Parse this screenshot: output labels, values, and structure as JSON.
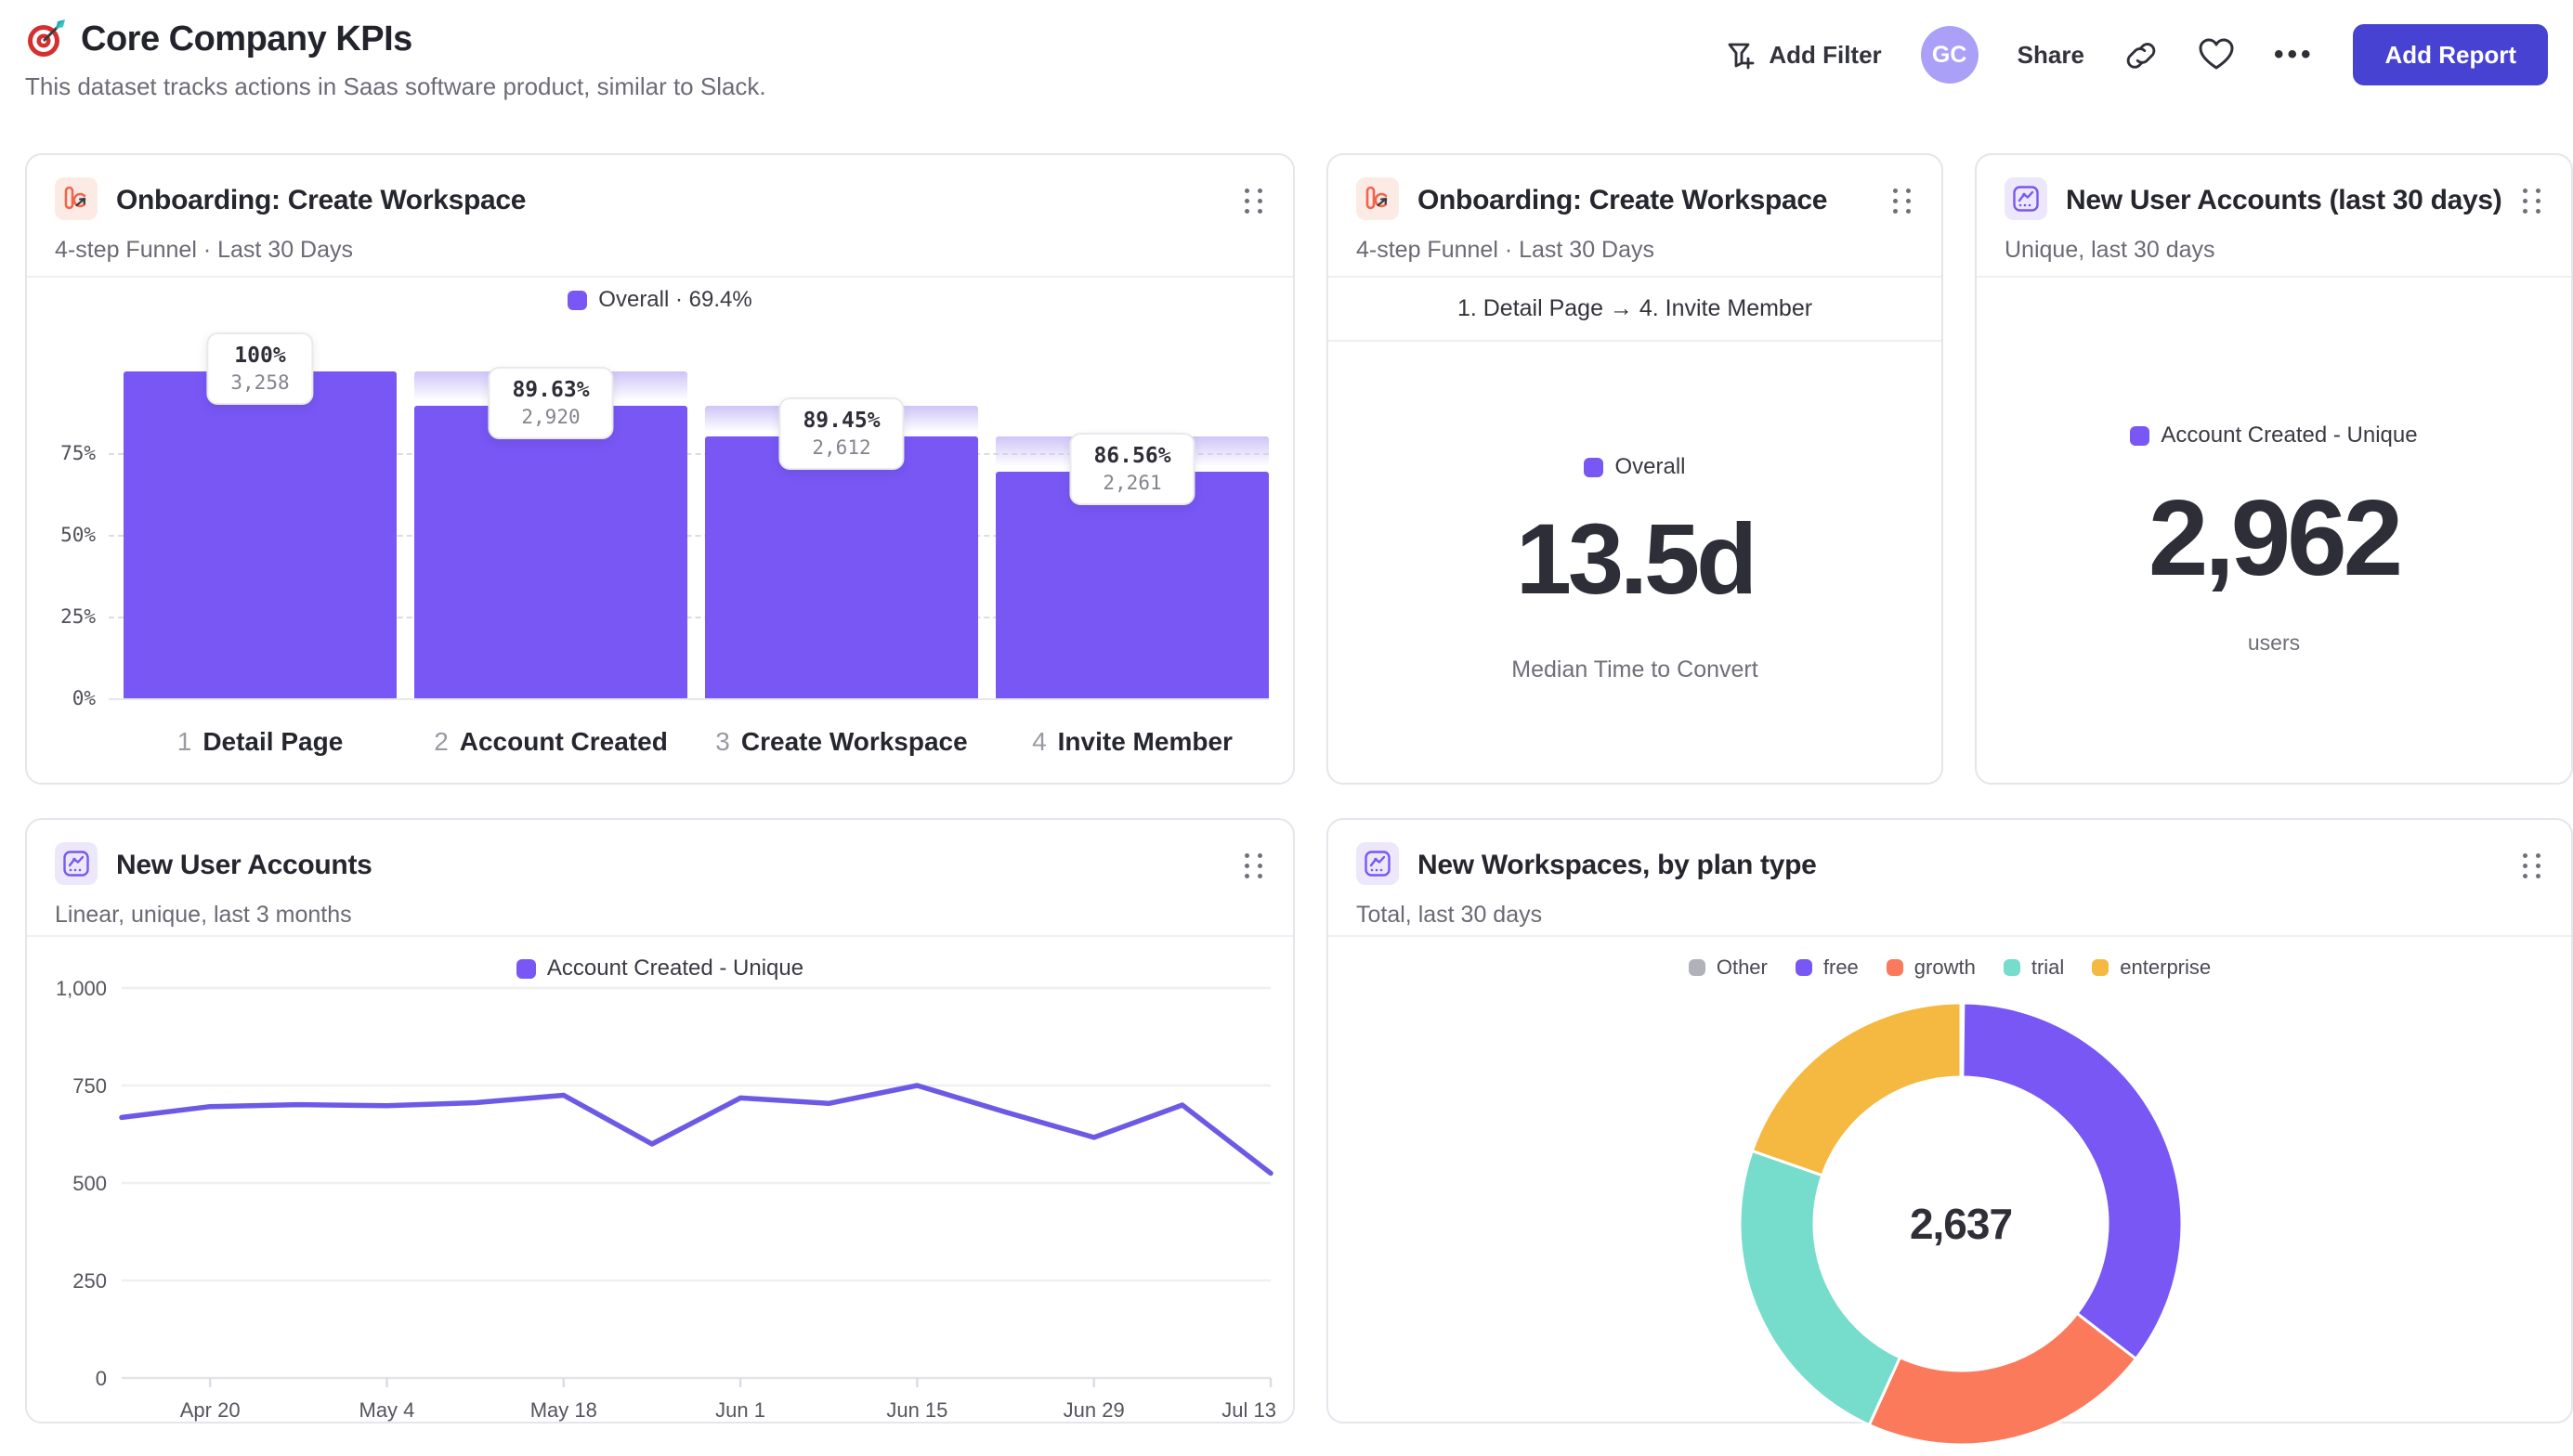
{
  "header": {
    "title": "Core Company KPIs",
    "subtitle": "This dataset tracks actions in Saas software product, similar to Slack.",
    "actions": {
      "add_filter": "Add Filter",
      "avatar_initials": "GC",
      "share": "Share",
      "more": "•••",
      "add_report": "Add Report"
    }
  },
  "colors": {
    "purple": "#7857f5",
    "coral": "#fb7a5c",
    "teal": "#76dccb",
    "amber": "#f5b942",
    "gray": "#b1b1b9"
  },
  "cards": {
    "funnel_bars": {
      "title": "Onboarding: Create Workspace",
      "subtitle": "4-step Funnel · Last 30 Days",
      "legend_label": "Overall · 69.4%"
    },
    "funnel_metric": {
      "title": "Onboarding: Create Workspace",
      "subtitle": "4-step Funnel · Last 30 Days",
      "range_label": "1. Detail Page → 4. Invite Member",
      "legend_label": "Overall",
      "value": "13.5d",
      "caption": "Median Time to Convert"
    },
    "new_users_metric": {
      "title": "New User Accounts (last 30 days)",
      "subtitle": "Unique, last 30 days",
      "legend_label": "Account Created - Unique",
      "value": "2,962",
      "caption": "users"
    },
    "new_users_line": {
      "title": "New User Accounts",
      "subtitle": "Linear, unique, last 3 months",
      "legend_label": "Account Created - Unique"
    },
    "workspaces_donut": {
      "title": "New Workspaces, by plan type",
      "subtitle": "Total, last 30 days",
      "center_value": "2,637"
    }
  },
  "chart_data": [
    {
      "type": "bar",
      "subtype": "funnel",
      "title": "Onboarding: Create Workspace",
      "overall_conversion_pct": 69.4,
      "yticks": [
        {
          "label": "75%",
          "v": 75
        },
        {
          "label": "50%",
          "v": 50
        },
        {
          "label": "25%",
          "v": 25
        },
        {
          "label": "0%",
          "v": 0
        }
      ],
      "steps": [
        {
          "num": "1",
          "label": "Detail Page",
          "count": 3258,
          "count_label": "3,258",
          "conv_label": "100%",
          "height_pct": 100.0
        },
        {
          "num": "2",
          "label": "Account Created",
          "count": 2920,
          "count_label": "2,920",
          "conv_label": "89.63%",
          "height_pct": 89.63
        },
        {
          "num": "3",
          "label": "Create Workspace",
          "count": 2612,
          "count_label": "2,612",
          "conv_label": "89.45%",
          "height_pct": 80.17
        },
        {
          "num": "4",
          "label": "Invite Member",
          "count": 2261,
          "count_label": "2,261",
          "conv_label": "86.56%",
          "height_pct": 69.4
        }
      ]
    },
    {
      "type": "line",
      "title": "New User Accounts",
      "series_name": "Account Created - Unique",
      "ylim": [
        0,
        1000
      ],
      "yticks": [
        {
          "label": "1,000",
          "v": 1000
        },
        {
          "label": "750",
          "v": 750
        },
        {
          "label": "500",
          "v": 500
        },
        {
          "label": "250",
          "v": 250
        },
        {
          "label": "0",
          "v": 0
        }
      ],
      "x": [
        "Apr 13",
        "Apr 20",
        "Apr 27",
        "May 4",
        "May 11",
        "May 18",
        "May 25",
        "Jun 1",
        "Jun 8",
        "Jun 15",
        "Jun 22",
        "Jun 29",
        "Jul 6",
        "Jul 13"
      ],
      "values": [
        668,
        696,
        701,
        698,
        706,
        725,
        600,
        718,
        704,
        750,
        682,
        617,
        700,
        525
      ],
      "xticks": [
        {
          "label": "Apr 20",
          "i": 1
        },
        {
          "label": "May 4",
          "i": 3
        },
        {
          "label": "May 18",
          "i": 5
        },
        {
          "label": "Jun 1",
          "i": 7
        },
        {
          "label": "Jun 15",
          "i": 9
        },
        {
          "label": "Jun 29",
          "i": 11
        },
        {
          "label": "Jul 13",
          "i": 13
        }
      ]
    },
    {
      "type": "pie",
      "subtype": "donut",
      "title": "New Workspaces, by plan type",
      "total": 2637,
      "total_label": "2,637",
      "legend_position": "top",
      "segments": [
        {
          "label": "Other",
          "value": 5,
          "color": "#b1b1b9"
        },
        {
          "label": "free",
          "value": 930,
          "color": "#7857f5"
        },
        {
          "label": "growth",
          "value": 563,
          "color": "#fb7a5c"
        },
        {
          "label": "trial",
          "value": 621,
          "color": "#76dccb"
        },
        {
          "label": "enterprise",
          "value": 518,
          "color": "#f5b942"
        }
      ]
    }
  ]
}
